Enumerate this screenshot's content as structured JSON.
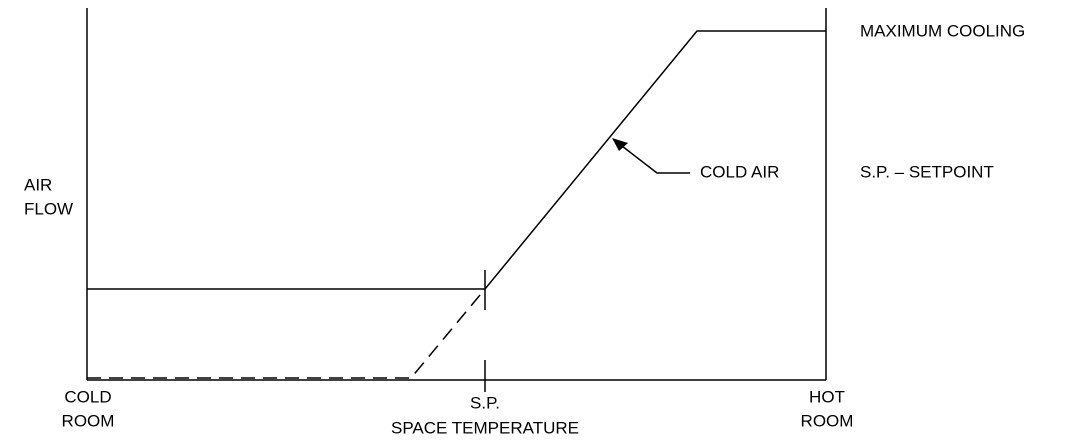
{
  "y_axis_label": [
    "AIR",
    "FLOW"
  ],
  "x_axis": {
    "left": [
      "COLD",
      "ROOM"
    ],
    "middle": [
      "S.P.",
      "SPACE TEMPERATURE"
    ],
    "right": [
      "HOT",
      "ROOM"
    ]
  },
  "annotations": {
    "maximum": "MAXIMUM COOLING",
    "curve": "COLD AIR",
    "legend": "S.P. – SETPOINT"
  }
}
